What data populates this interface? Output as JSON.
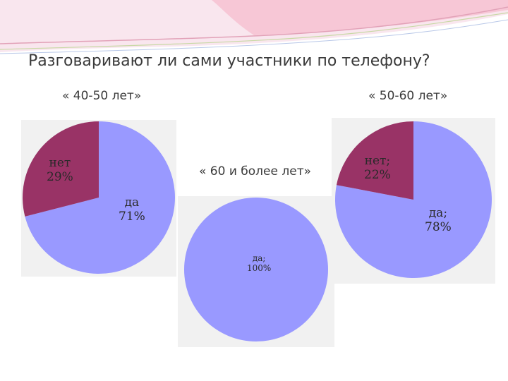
{
  "title": "Разговаривают ли сами участники по телефону?",
  "colors": {
    "yes": "#9999FF",
    "no": "#993366",
    "panel": "#f1f1f1"
  },
  "chart_data": [
    {
      "type": "pie",
      "title": "« 40-50 лет»",
      "slices": [
        {
          "label": "да",
          "value": 71,
          "value_label": "71%",
          "color": "#9999FF"
        },
        {
          "label": "нет",
          "value": 29,
          "value_label": "29%",
          "color": "#993366"
        }
      ]
    },
    {
      "type": "pie",
      "title": "« 50-60 лет»",
      "slices": [
        {
          "label": "да;",
          "value": 78,
          "value_label": "78%",
          "color": "#9999FF"
        },
        {
          "label": "нет;",
          "value": 22,
          "value_label": "22%",
          "color": "#993366"
        }
      ]
    },
    {
      "type": "pie",
      "title": "« 60 и более лет»",
      "slices": [
        {
          "label": "да;",
          "value": 100,
          "value_label": "100%",
          "color": "#9999FF"
        }
      ]
    }
  ]
}
